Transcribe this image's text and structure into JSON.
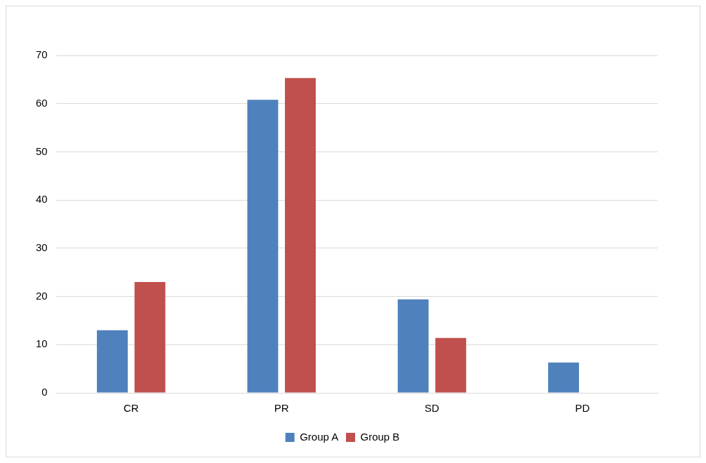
{
  "chart_data": {
    "type": "bar",
    "categories": [
      "CR",
      "PR",
      "SD",
      "PD"
    ],
    "series": [
      {
        "name": "Group A",
        "color": "#4f81bd",
        "values": [
          13,
          60.8,
          19.4,
          6.3
        ]
      },
      {
        "name": "Group B",
        "color": "#c0504d",
        "values": [
          23,
          65.3,
          11.4,
          0
        ]
      }
    ],
    "ylim": [
      0,
      70
    ],
    "yticks": [
      0,
      10,
      20,
      30,
      40,
      50,
      60,
      70
    ],
    "grid": "y",
    "legend": "bottom"
  }
}
